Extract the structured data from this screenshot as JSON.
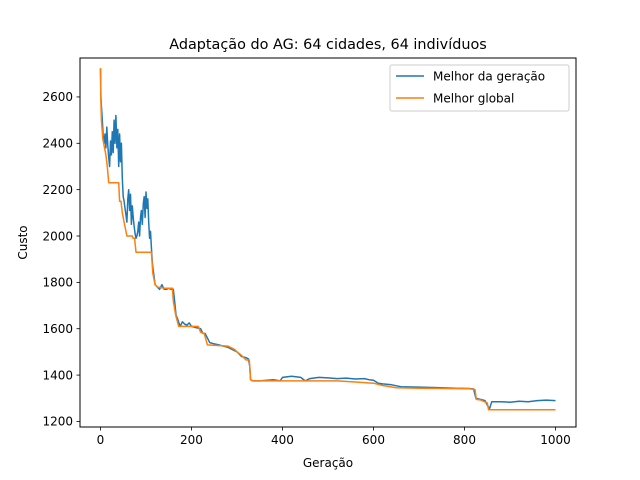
{
  "chart_data": {
    "type": "line",
    "title": "Adaptação do AG: 64 cidades, 64 indivíduos",
    "xlabel": "Geração",
    "ylabel": "Custo",
    "xlim": [
      -45,
      1045
    ],
    "ylim": [
      1176,
      2768
    ],
    "xticks": [
      0,
      200,
      400,
      600,
      800,
      1000
    ],
    "yticks": [
      1200,
      1400,
      1600,
      1800,
      2000,
      2200,
      2400,
      2600
    ],
    "grid": false,
    "legend_position": "top-right",
    "series": [
      {
        "name": "Melhor da geração",
        "color": "#1f77b4",
        "points": [
          [
            0,
            2720
          ],
          [
            1,
            2600
          ],
          [
            2,
            2560
          ],
          [
            4,
            2500
          ],
          [
            6,
            2430
          ],
          [
            8,
            2400
          ],
          [
            10,
            2440
          ],
          [
            12,
            2380
          ],
          [
            14,
            2470
          ],
          [
            16,
            2390
          ],
          [
            18,
            2340
          ],
          [
            20,
            2300
          ],
          [
            22,
            2410
          ],
          [
            24,
            2350
          ],
          [
            26,
            2450
          ],
          [
            28,
            2360
          ],
          [
            30,
            2500
          ],
          [
            32,
            2400
          ],
          [
            34,
            2520
          ],
          [
            36,
            2380
          ],
          [
            38,
            2460
          ],
          [
            40,
            2300
          ],
          [
            42,
            2440
          ],
          [
            44,
            2320
          ],
          [
            46,
            2400
          ],
          [
            48,
            2250
          ],
          [
            50,
            2170
          ],
          [
            52,
            2150
          ],
          [
            54,
            2120
          ],
          [
            56,
            2090
          ],
          [
            58,
            2060
          ],
          [
            60,
            2160
          ],
          [
            62,
            2200
          ],
          [
            64,
            2110
          ],
          [
            66,
            2180
          ],
          [
            68,
            2050
          ],
          [
            70,
            2130
          ],
          [
            72,
            2080
          ],
          [
            74,
            2040
          ],
          [
            76,
            2010
          ],
          [
            78,
            1990
          ],
          [
            80,
            2000
          ],
          [
            82,
            2020
          ],
          [
            84,
            2060
          ],
          [
            86,
            2000
          ],
          [
            88,
            2080
          ],
          [
            90,
            2110
          ],
          [
            92,
            2050
          ],
          [
            94,
            2140
          ],
          [
            96,
            2170
          ],
          [
            98,
            2080
          ],
          [
            100,
            2190
          ],
          [
            102,
            2120
          ],
          [
            104,
            2160
          ],
          [
            106,
            2060
          ],
          [
            108,
            1990
          ],
          [
            110,
            2020
          ],
          [
            112,
            1950
          ],
          [
            114,
            1880
          ],
          [
            116,
            1850
          ],
          [
            118,
            1820
          ],
          [
            120,
            1790
          ],
          [
            125,
            1780
          ],
          [
            130,
            1770
          ],
          [
            135,
            1790
          ],
          [
            140,
            1770
          ],
          [
            145,
            1770
          ],
          [
            150,
            1775
          ],
          [
            155,
            1770
          ],
          [
            160,
            1770
          ],
          [
            163,
            1720
          ],
          [
            166,
            1660
          ],
          [
            170,
            1640
          ],
          [
            175,
            1610
          ],
          [
            180,
            1630
          ],
          [
            185,
            1620
          ],
          [
            190,
            1615
          ],
          [
            195,
            1625
          ],
          [
            200,
            1610
          ],
          [
            210,
            1605
          ],
          [
            220,
            1600
          ],
          [
            225,
            1580
          ],
          [
            230,
            1580
          ],
          [
            240,
            1540
          ],
          [
            250,
            1535
          ],
          [
            260,
            1530
          ],
          [
            270,
            1525
          ],
          [
            280,
            1520
          ],
          [
            290,
            1510
          ],
          [
            295,
            1505
          ],
          [
            300,
            1500
          ],
          [
            305,
            1490
          ],
          [
            310,
            1480
          ],
          [
            320,
            1475
          ],
          [
            325,
            1470
          ],
          [
            328,
            1440
          ],
          [
            330,
            1380
          ],
          [
            335,
            1375
          ],
          [
            350,
            1375
          ],
          [
            380,
            1380
          ],
          [
            395,
            1375
          ],
          [
            400,
            1390
          ],
          [
            420,
            1395
          ],
          [
            440,
            1390
          ],
          [
            450,
            1375
          ],
          [
            460,
            1385
          ],
          [
            480,
            1390
          ],
          [
            500,
            1388
          ],
          [
            520,
            1385
          ],
          [
            540,
            1387
          ],
          [
            560,
            1383
          ],
          [
            580,
            1385
          ],
          [
            590,
            1380
          ],
          [
            600,
            1378
          ],
          [
            610,
            1365
          ],
          [
            620,
            1362
          ],
          [
            640,
            1358
          ],
          [
            660,
            1350
          ],
          [
            700,
            1348
          ],
          [
            740,
            1346
          ],
          [
            780,
            1343
          ],
          [
            810,
            1342
          ],
          [
            820,
            1340
          ],
          [
            825,
            1300
          ],
          [
            835,
            1295
          ],
          [
            845,
            1290
          ],
          [
            850,
            1270
          ],
          [
            855,
            1255
          ],
          [
            860,
            1285
          ],
          [
            880,
            1285
          ],
          [
            900,
            1283
          ],
          [
            920,
            1287
          ],
          [
            940,
            1285
          ],
          [
            960,
            1290
          ],
          [
            980,
            1292
          ],
          [
            1000,
            1290
          ]
        ]
      },
      {
        "name": "Melhor global",
        "color": "#ff7f0e",
        "points": [
          [
            0,
            2725
          ],
          [
            1,
            2580
          ],
          [
            2,
            2500
          ],
          [
            5,
            2420
          ],
          [
            8,
            2390
          ],
          [
            10,
            2370
          ],
          [
            12,
            2350
          ],
          [
            15,
            2300
          ],
          [
            18,
            2230
          ],
          [
            40,
            2230
          ],
          [
            42,
            2150
          ],
          [
            45,
            2150
          ],
          [
            48,
            2100
          ],
          [
            52,
            2060
          ],
          [
            55,
            2030
          ],
          [
            58,
            2000
          ],
          [
            70,
            2000
          ],
          [
            72,
            1990
          ],
          [
            75,
            1990
          ],
          [
            78,
            1930
          ],
          [
            112,
            1930
          ],
          [
            115,
            1840
          ],
          [
            120,
            1790
          ],
          [
            125,
            1780
          ],
          [
            140,
            1775
          ],
          [
            158,
            1775
          ],
          [
            160,
            1720
          ],
          [
            165,
            1660
          ],
          [
            172,
            1610
          ],
          [
            215,
            1610
          ],
          [
            220,
            1585
          ],
          [
            228,
            1580
          ],
          [
            235,
            1530
          ],
          [
            280,
            1525
          ],
          [
            295,
            1510
          ],
          [
            300,
            1500
          ],
          [
            310,
            1485
          ],
          [
            320,
            1465
          ],
          [
            327,
            1465
          ],
          [
            330,
            1380
          ],
          [
            335,
            1375
          ],
          [
            400,
            1375
          ],
          [
            480,
            1375
          ],
          [
            520,
            1375
          ],
          [
            560,
            1370
          ],
          [
            600,
            1365
          ],
          [
            620,
            1355
          ],
          [
            650,
            1345
          ],
          [
            700,
            1343
          ],
          [
            760,
            1342
          ],
          [
            810,
            1341
          ],
          [
            823,
            1338
          ],
          [
            826,
            1295
          ],
          [
            835,
            1293
          ],
          [
            850,
            1280
          ],
          [
            853,
            1250
          ],
          [
            1000,
            1250
          ]
        ]
      }
    ]
  }
}
